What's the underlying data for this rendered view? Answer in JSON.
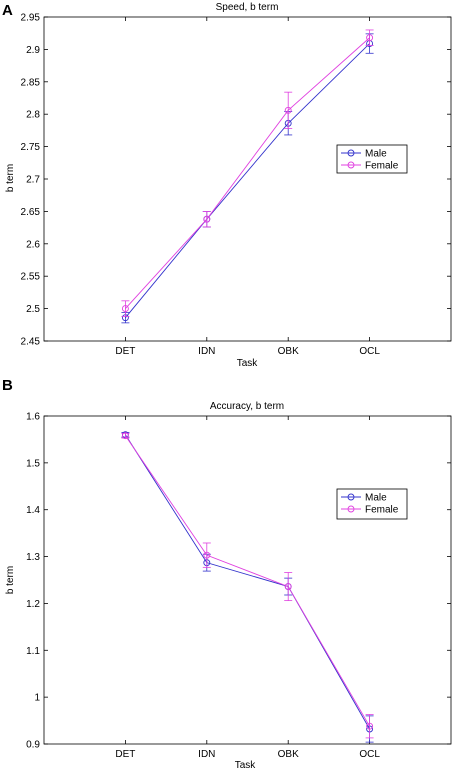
{
  "chart_data": [
    {
      "panel": "A",
      "type": "line",
      "title": "Speed, b term",
      "xlabel": "Task",
      "ylabel": "b term",
      "categories": [
        "DET",
        "IDN",
        "OBK",
        "OCL"
      ],
      "ylim": [
        2.45,
        2.95
      ],
      "yticks": [
        "2.45",
        "2.5",
        "2.55",
        "2.6",
        "2.65",
        "2.7",
        "2.75",
        "2.8",
        "2.85",
        "2.9",
        "2.95"
      ],
      "legend": "right",
      "series": [
        {
          "name": "Male",
          "color": "#3333cc",
          "values": [
            2.486,
            2.638,
            2.786,
            2.909
          ],
          "errors": [
            0.008,
            0.012,
            0.018,
            0.015
          ]
        },
        {
          "name": "Female",
          "color": "#e040e0",
          "values": [
            2.5,
            2.638,
            2.806,
            2.918
          ],
          "errors": [
            0.012,
            0.012,
            0.028,
            0.012
          ]
        }
      ]
    },
    {
      "panel": "B",
      "type": "line",
      "title": "Accuracy, b term",
      "xlabel": "Task",
      "ylabel": "b term",
      "categories": [
        "DET",
        "IDN",
        "OBK",
        "OCL"
      ],
      "ylim": [
        0.9,
        1.6
      ],
      "yticks": [
        "0.9",
        "1",
        "1.1",
        "1.2",
        "1.3",
        "1.4",
        "1.5",
        "1.6"
      ],
      "legend": "right",
      "series": [
        {
          "name": "Male",
          "color": "#3333cc",
          "values": [
            1.56,
            1.287,
            1.236,
            0.932
          ],
          "errors": [
            0.005,
            0.018,
            0.018,
            0.028
          ]
        },
        {
          "name": "Female",
          "color": "#e040e0",
          "values": [
            1.558,
            1.303,
            1.236,
            0.938
          ],
          "errors": [
            0.005,
            0.026,
            0.03,
            0.025
          ]
        }
      ]
    }
  ]
}
